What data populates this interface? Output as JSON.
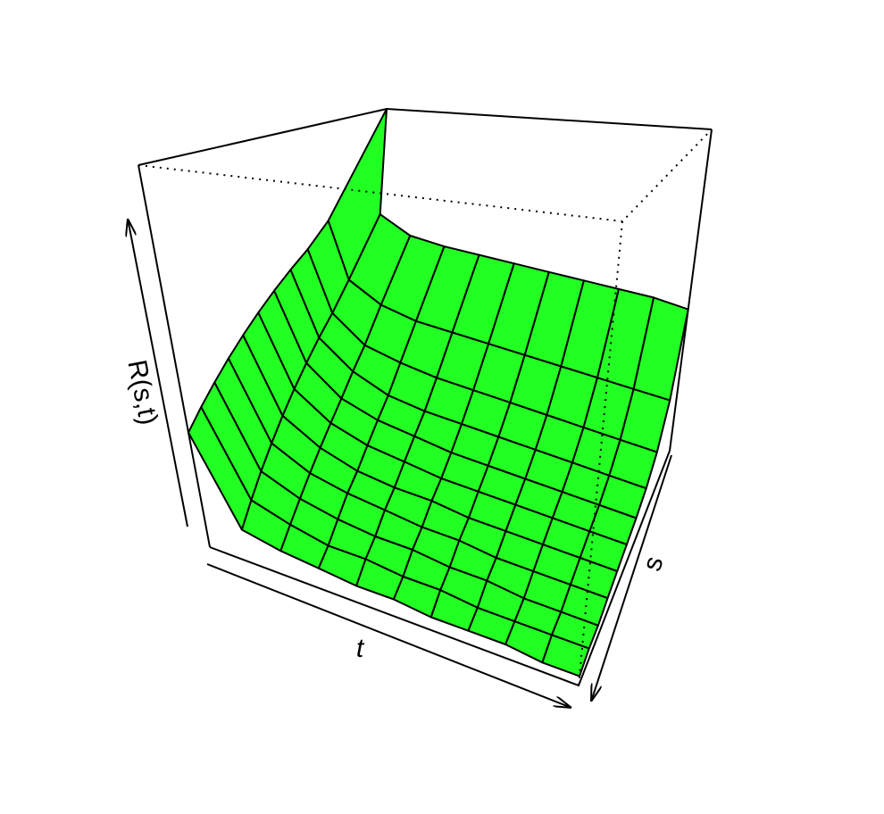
{
  "chart_data": {
    "type": "surface",
    "x_label": "t",
    "y_label": "s",
    "z_label": "R(s,t)",
    "color": "#22ff22",
    "xlim": [
      0,
      1
    ],
    "ylim": [
      0,
      1
    ],
    "zlim": [
      0,
      1
    ],
    "x": [
      0,
      0.1,
      0.2,
      0.3,
      0.4,
      0.5,
      0.6,
      0.7,
      0.8,
      0.9,
      1
    ],
    "y": [
      0,
      0.1,
      0.2,
      0.3,
      0.4,
      0.5,
      0.6,
      0.7,
      0.8,
      0.9,
      1
    ],
    "z": [
      [
        1.0,
        0.52,
        0.46,
        0.45,
        0.45,
        0.45,
        0.45,
        0.45,
        0.45,
        0.45,
        0.44
      ],
      [
        0.52,
        0.3,
        0.24,
        0.22,
        0.22,
        0.22,
        0.22,
        0.22,
        0.22,
        0.22,
        0.22
      ],
      [
        0.46,
        0.24,
        0.16,
        0.14,
        0.13,
        0.13,
        0.13,
        0.13,
        0.13,
        0.13,
        0.13
      ],
      [
        0.44,
        0.22,
        0.14,
        0.1,
        0.09,
        0.09,
        0.09,
        0.09,
        0.09,
        0.09,
        0.09
      ],
      [
        0.42,
        0.2,
        0.12,
        0.09,
        0.08,
        0.07,
        0.07,
        0.07,
        0.07,
        0.07,
        0.07
      ],
      [
        0.4,
        0.18,
        0.11,
        0.08,
        0.07,
        0.06,
        0.06,
        0.06,
        0.06,
        0.06,
        0.06
      ],
      [
        0.38,
        0.16,
        0.1,
        0.07,
        0.06,
        0.06,
        0.05,
        0.05,
        0.05,
        0.05,
        0.05
      ],
      [
        0.36,
        0.14,
        0.09,
        0.07,
        0.06,
        0.05,
        0.05,
        0.04,
        0.04,
        0.04,
        0.04
      ],
      [
        0.34,
        0.12,
        0.08,
        0.06,
        0.05,
        0.05,
        0.04,
        0.04,
        0.03,
        0.03,
        0.03
      ],
      [
        0.32,
        0.1,
        0.07,
        0.05,
        0.05,
        0.04,
        0.04,
        0.03,
        0.03,
        0.03,
        0.03
      ],
      [
        0.3,
        0.08,
        0.06,
        0.05,
        0.04,
        0.04,
        0.03,
        0.03,
        0.03,
        0.02,
        0.02
      ]
    ]
  }
}
